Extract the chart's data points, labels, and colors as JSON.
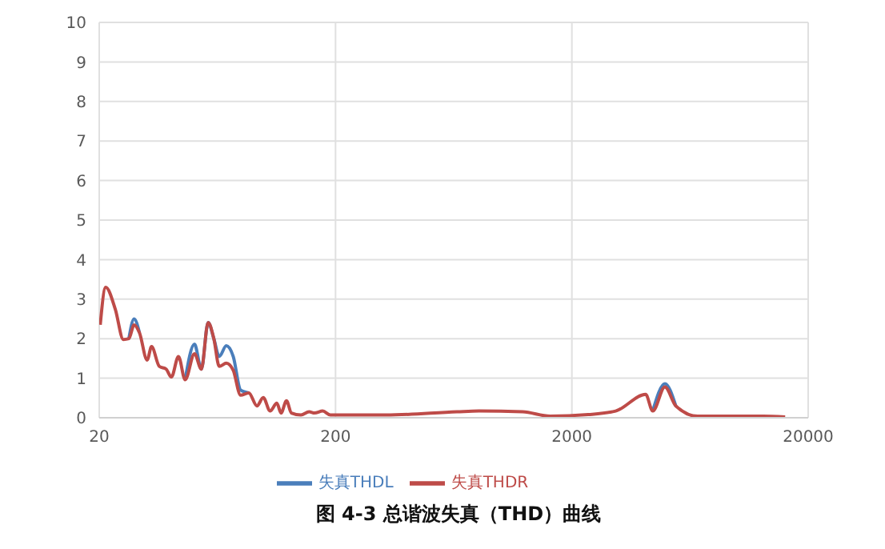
{
  "chart_data": {
    "type": "line",
    "title": "图 4-3 总谐波失真（THD）曲线",
    "log": "x",
    "x": [
      20.2,
      21.3,
      23.4,
      25.3,
      26.7,
      28.1,
      29.6,
      31.9,
      33.3,
      35.9,
      38.4,
      40.4,
      43.3,
      46.2,
      50.6,
      54.1,
      57.8,
      61.1,
      64.4,
      69,
      73.8,
      79.3,
      85.9,
      93,
      98.9,
      105.7,
      112.9,
      117.6,
      124,
      130.1,
      142.8,
      154.6,
      163,
      176.5,
      190.2,
      327,
      653,
      808,
      1238,
      1618,
      2346,
      3064,
      4106,
      4398,
      4952,
      5506,
      6820,
      9380,
      12920,
      15980
    ],
    "series": [
      {
        "name": "失真THDL",
        "color": "#4a7ebb",
        "values": [
          null,
          null,
          null,
          null,
          2.0,
          2.5,
          2.15,
          null,
          null,
          null,
          null,
          null,
          null,
          0.96,
          1.86,
          1.23,
          2.41,
          2.0,
          1.55,
          1.82,
          1.55,
          0.7,
          0.63,
          null,
          null,
          null,
          null,
          null,
          null,
          null,
          null,
          null,
          null,
          null,
          null,
          null,
          null,
          null,
          null,
          null,
          null,
          null,
          null,
          0.17,
          0.86,
          0.3,
          null,
          null,
          null,
          null
        ]
      },
      {
        "name": "失真THDR",
        "color": "#be4b48",
        "values": [
          2.35,
          3.3,
          2.74,
          1.98,
          2.0,
          2.35,
          2.15,
          1.46,
          1.8,
          1.3,
          1.23,
          1.03,
          1.55,
          0.96,
          1.62,
          1.23,
          2.41,
          2.0,
          1.3,
          1.38,
          1.2,
          0.57,
          0.63,
          0.3,
          0.51,
          0.17,
          0.37,
          0.12,
          0.43,
          0.12,
          0.07,
          0.15,
          0.12,
          0.17,
          0.07,
          0.07,
          0.15,
          0.17,
          0.15,
          0.04,
          0.08,
          0.17,
          0.59,
          0.17,
          0.78,
          0.3,
          0.04,
          0.04,
          0.04,
          0.02
        ]
      }
    ],
    "xlim": [
      20,
      20000
    ],
    "xticks": [
      20,
      200,
      2000,
      20000
    ],
    "ylim": [
      0,
      10
    ],
    "yticks": [
      0,
      1,
      2,
      3,
      4,
      5,
      6,
      7,
      8,
      9,
      10
    ],
    "grid": true,
    "legend": "bottom",
    "marker": "none",
    "line_style": "solid"
  }
}
